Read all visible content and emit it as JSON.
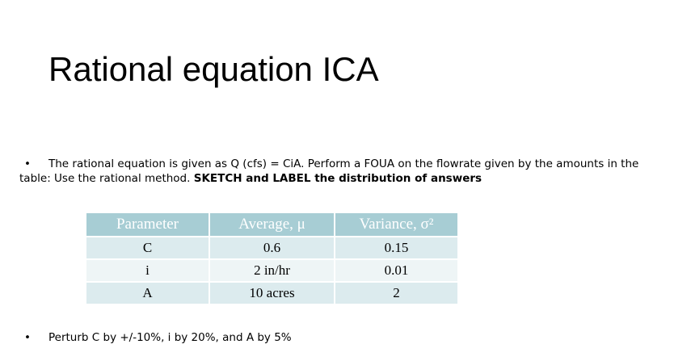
{
  "title": "Rational equation ICA",
  "bullets": [
    {
      "text": "The rational equation is given as Q (cfs) = CiA.  Perform a FOUA on the flowrate given by the amounts in the table: Use the rational method.",
      "bold": "SKETCH and LABEL the distribution of answers"
    },
    {
      "text": "Perturb C by +/-10%, i by 20%, and A by 5%"
    }
  ],
  "table": {
    "header": [
      "Parameter",
      "Average, μ",
      "Variance, σ²"
    ],
    "rows": [
      [
        "C",
        "0.6",
        "0.15"
      ],
      [
        "i",
        "2 in/hr",
        "0.01"
      ],
      [
        "A",
        "10 acres",
        "2"
      ]
    ]
  }
}
